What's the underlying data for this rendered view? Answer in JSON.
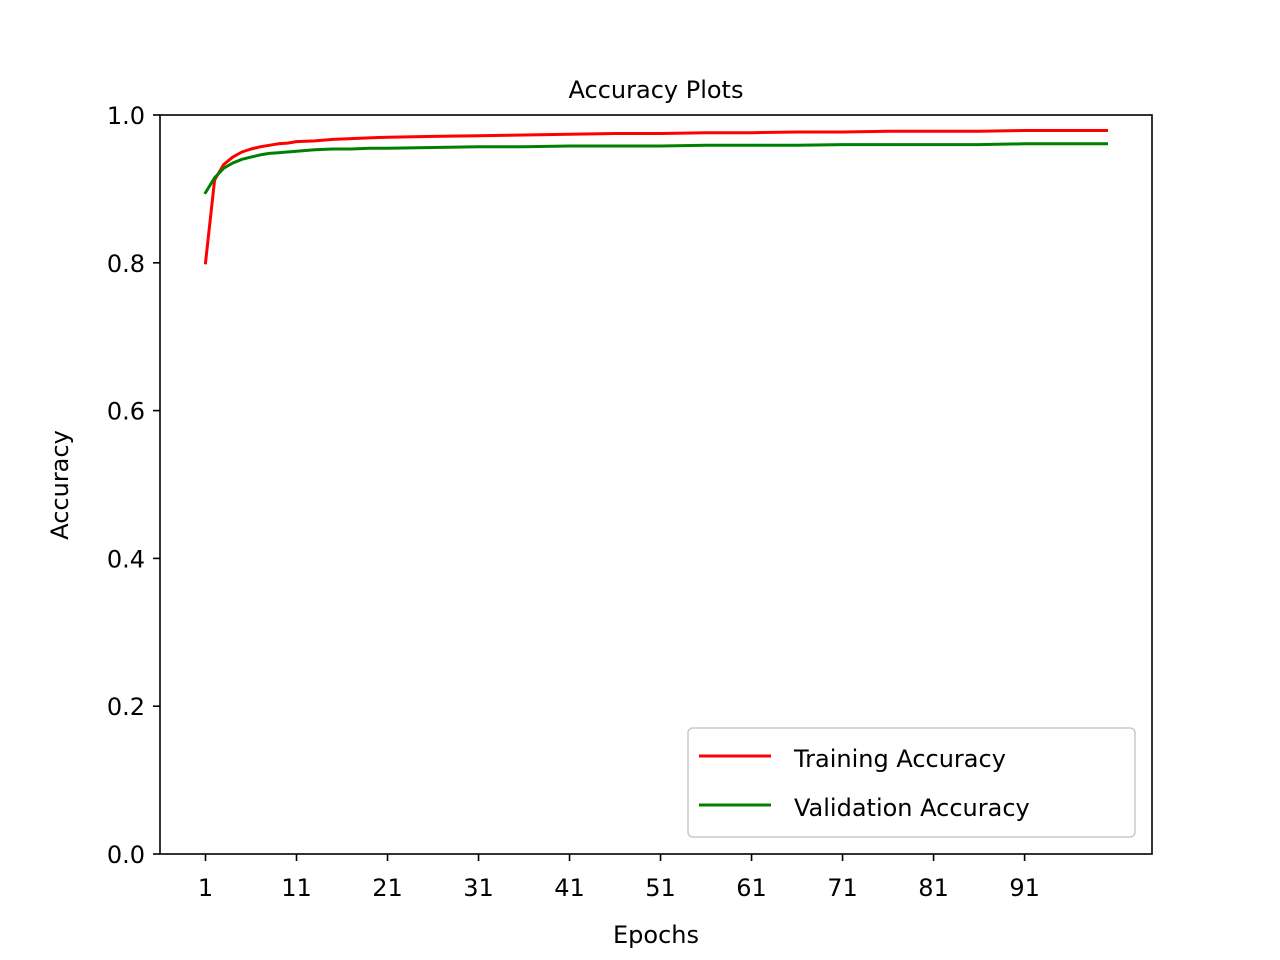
{
  "chart_data": {
    "type": "line",
    "title": "Accuracy Plots",
    "xlabel": "Epochs",
    "ylabel": "Accuracy",
    "xlim": [
      -4,
      105
    ],
    "ylim": [
      0.0,
      1.0
    ],
    "x_ticks": [
      1,
      11,
      21,
      31,
      41,
      51,
      61,
      71,
      81,
      91
    ],
    "y_ticks": [
      0.0,
      0.2,
      0.4,
      0.6,
      0.8,
      1.0
    ],
    "y_tick_labels": [
      "0.0",
      "0.2",
      "0.4",
      "0.6",
      "0.8",
      "1.0"
    ],
    "grid": false,
    "legend": {
      "placement": "lower-right"
    },
    "x": [
      1,
      2,
      3,
      4,
      5,
      6,
      7,
      8,
      9,
      10,
      11,
      13,
      15,
      17,
      19,
      21,
      26,
      31,
      36,
      41,
      46,
      51,
      56,
      61,
      66,
      71,
      76,
      81,
      86,
      91,
      96,
      100
    ],
    "series": [
      {
        "name": "Training Accuracy",
        "color": "#ff0000",
        "values": [
          0.8,
          0.912,
          0.933,
          0.943,
          0.95,
          0.954,
          0.957,
          0.959,
          0.961,
          0.962,
          0.964,
          0.965,
          0.967,
          0.968,
          0.969,
          0.97,
          0.971,
          0.972,
          0.973,
          0.974,
          0.975,
          0.975,
          0.976,
          0.976,
          0.977,
          0.977,
          0.978,
          0.978,
          0.978,
          0.979,
          0.979,
          0.979
        ]
      },
      {
        "name": "Validation Accuracy",
        "color": "#008000",
        "values": [
          0.895,
          0.915,
          0.928,
          0.935,
          0.94,
          0.943,
          0.946,
          0.948,
          0.949,
          0.95,
          0.951,
          0.953,
          0.954,
          0.954,
          0.955,
          0.955,
          0.956,
          0.957,
          0.957,
          0.958,
          0.958,
          0.958,
          0.959,
          0.959,
          0.959,
          0.96,
          0.96,
          0.96,
          0.96,
          0.961,
          0.961,
          0.961
        ]
      }
    ]
  }
}
